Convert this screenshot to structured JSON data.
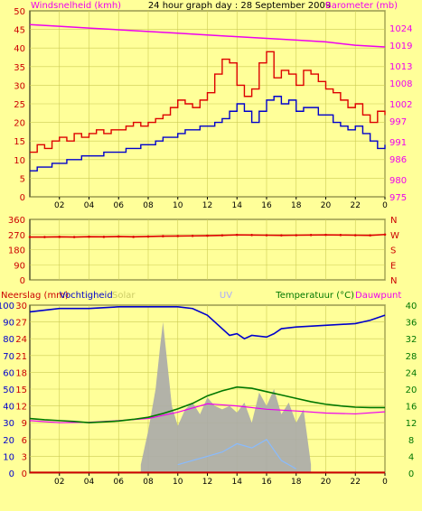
{
  "chart_data": [
    {
      "type": "line",
      "title": "24 hour graph day : 28 September 2009",
      "ylabel_left": "Windsnelheid (kmh)",
      "ylabel_right": "Barometer (mb)",
      "x_ticks": [
        "02",
        "04",
        "06",
        "08",
        "10",
        "12",
        "14",
        "16",
        "18",
        "20",
        "22",
        "0"
      ],
      "xlim": [
        0,
        24
      ],
      "ylim_left": [
        0,
        50
      ],
      "y_ticks_left": [
        0,
        5,
        10,
        15,
        20,
        25,
        30,
        35,
        40,
        45,
        50
      ],
      "ylim_right": [
        975,
        1029
      ],
      "y_ticks_right": [
        975,
        980,
        986,
        991,
        997,
        1002,
        1008,
        1013,
        1019,
        1024
      ],
      "colors": {
        "gust": "#dd0000",
        "wind": "#0000cc",
        "barometer": "#ee00ee"
      },
      "series": [
        {
          "key": "gust",
          "x": [
            0,
            0.5,
            1,
            1.5,
            2,
            2.5,
            3,
            3.5,
            4,
            4.5,
            5,
            5.5,
            6,
            6.5,
            7,
            7.5,
            8,
            8.5,
            9,
            9.5,
            10,
            10.5,
            11,
            11.5,
            12,
            12.5,
            13,
            13.5,
            14,
            14.5,
            15,
            15.5,
            16,
            16.5,
            17,
            17.5,
            18,
            18.5,
            19,
            19.5,
            20,
            20.5,
            21,
            21.5,
            22,
            22.5,
            23,
            23.5,
            24
          ],
          "values": [
            12,
            14,
            13,
            15,
            16,
            15,
            17,
            16,
            17,
            18,
            17,
            18,
            18,
            19,
            20,
            19,
            20,
            21,
            22,
            24,
            26,
            25,
            24,
            26,
            28,
            33,
            37,
            36,
            30,
            27,
            29,
            36,
            39,
            32,
            34,
            33,
            30,
            34,
            33,
            31,
            29,
            28,
            26,
            24,
            25,
            22,
            20,
            23,
            22
          ]
        },
        {
          "key": "wind",
          "x": [
            0,
            0.5,
            1,
            1.5,
            2,
            2.5,
            3,
            3.5,
            4,
            4.5,
            5,
            5.5,
            6,
            6.5,
            7,
            7.5,
            8,
            8.5,
            9,
            9.5,
            10,
            10.5,
            11,
            11.5,
            12,
            12.5,
            13,
            13.5,
            14,
            14.5,
            15,
            15.5,
            16,
            16.5,
            17,
            17.5,
            18,
            18.5,
            19,
            19.5,
            20,
            20.5,
            21,
            21.5,
            22,
            22.5,
            23,
            23.5,
            24
          ],
          "values": [
            7,
            8,
            8,
            9,
            9,
            10,
            10,
            11,
            11,
            11,
            12,
            12,
            12,
            13,
            13,
            14,
            14,
            15,
            16,
            16,
            17,
            18,
            18,
            19,
            19,
            20,
            21,
            23,
            25,
            23,
            20,
            23,
            26,
            27,
            25,
            26,
            23,
            24,
            24,
            22,
            22,
            20,
            19,
            18,
            19,
            17,
            15,
            13,
            14
          ]
        },
        {
          "key": "barometer",
          "x": [
            0,
            2,
            4,
            6,
            8,
            10,
            12,
            14,
            16,
            18,
            20,
            22,
            24
          ],
          "values": [
            1025,
            1024.5,
            1024,
            1023.5,
            1023,
            1022.5,
            1022,
            1021.5,
            1021,
            1020.5,
            1020,
            1019,
            1018.5
          ]
        }
      ]
    },
    {
      "type": "scatter",
      "ylabel_right": [
        "N",
        "W",
        "S",
        "E",
        "N"
      ],
      "xlim": [
        0,
        24
      ],
      "ylim": [
        0,
        360
      ],
      "y_ticks": [
        0,
        90,
        180,
        270,
        360
      ],
      "color": "#dd0000",
      "x": [
        0,
        1,
        2,
        3,
        4,
        5,
        6,
        7,
        8,
        9,
        10,
        11,
        12,
        13,
        14,
        15,
        16,
        17,
        18,
        19,
        20,
        21,
        22,
        23,
        24
      ],
      "values": [
        255,
        255,
        256,
        255,
        257,
        256,
        258,
        256,
        258,
        260,
        261,
        262,
        263,
        265,
        268,
        267,
        266,
        265,
        266,
        267,
        268,
        267,
        266,
        265,
        270
      ]
    },
    {
      "type": "line",
      "labels": {
        "rain": "Neerslag (mm)",
        "humidity": "Vochtigheid",
        "solar": "Solar",
        "uv": "UV",
        "temp": "Temperatuur (°C)",
        "dew": "Dauwpunt"
      },
      "colors": {
        "rain": "#cc0000",
        "humidity": "#0000cc",
        "solar": "#aaaaaa",
        "uv": "#88bbff",
        "temp": "#007700",
        "dew": "#ee00ee"
      },
      "x_ticks": [
        "02",
        "04",
        "06",
        "08",
        "10",
        "12",
        "14",
        "16",
        "18",
        "20",
        "22",
        "0"
      ],
      "xlim": [
        0,
        24
      ],
      "ylim_rain": [
        0,
        30
      ],
      "y_ticks_rain": [
        0,
        3,
        6,
        9,
        12,
        15,
        18,
        21,
        24,
        27,
        30
      ],
      "ylim_humidity": [
        0,
        100
      ],
      "y_ticks_humidity": [
        0,
        10,
        20,
        30,
        40,
        50,
        60,
        70,
        80,
        90,
        100
      ],
      "ylim_temp": [
        0,
        40
      ],
      "y_ticks_temp": [
        0,
        4,
        8,
        12,
        16,
        20,
        24,
        28,
        32,
        36,
        40
      ],
      "series": [
        {
          "key": "humidity",
          "x": [
            0,
            1,
            2,
            4,
            6,
            8,
            10,
            11,
            12,
            13,
            13.5,
            14,
            14.5,
            15,
            16,
            16.5,
            17,
            18,
            20,
            22,
            23,
            24
          ],
          "values": [
            96,
            97,
            98,
            98,
            99,
            99,
            99,
            98,
            94,
            86,
            82,
            83,
            80,
            82,
            81,
            83,
            86,
            87,
            88,
            89,
            91,
            94
          ]
        },
        {
          "key": "temp",
          "x": [
            0,
            1,
            2,
            3,
            4,
            5,
            6,
            7,
            8,
            9,
            10,
            11,
            12,
            13,
            14,
            15,
            16,
            17,
            18,
            19,
            20,
            21,
            22,
            23,
            24
          ],
          "values": [
            13,
            12.7,
            12.5,
            12.3,
            12,
            12.2,
            12.4,
            12.8,
            13.3,
            14.2,
            15.3,
            16.6,
            18.4,
            19.6,
            20.5,
            20.2,
            19.4,
            18.6,
            17.8,
            17,
            16.4,
            16,
            15.7,
            15.6,
            15.6
          ]
        },
        {
          "key": "dew",
          "x": [
            0,
            2,
            4,
            6,
            8,
            10,
            12,
            14,
            16,
            18,
            20,
            22,
            24
          ],
          "values": [
            12.5,
            12,
            12.1,
            12.5,
            13,
            14.5,
            16.5,
            16,
            15.2,
            14.8,
            14.3,
            14.1,
            14.6
          ]
        },
        {
          "key": "rain",
          "x": [
            0,
            24
          ],
          "values": [
            0.1,
            0.1
          ]
        },
        {
          "key": "solar",
          "x": [
            7.5,
            8,
            8.5,
            8.8,
            9,
            9.3,
            9.6,
            10,
            10.5,
            11,
            11.5,
            12,
            12.5,
            13,
            13.5,
            14,
            14.5,
            15,
            15.5,
            16,
            16.5,
            17,
            17.5,
            18,
            18.5,
            19
          ],
          "values": [
            5,
            25,
            50,
            75,
            90,
            65,
            40,
            28,
            38,
            42,
            35,
            45,
            40,
            38,
            40,
            36,
            42,
            30,
            48,
            40,
            50,
            35,
            42,
            30,
            38,
            5
          ]
        },
        {
          "key": "uv",
          "x": [
            10,
            11,
            12,
            13,
            14,
            15,
            16,
            17,
            18
          ],
          "values": [
            2,
            3,
            4,
            5,
            7,
            6,
            8,
            3,
            1
          ]
        }
      ]
    }
  ]
}
